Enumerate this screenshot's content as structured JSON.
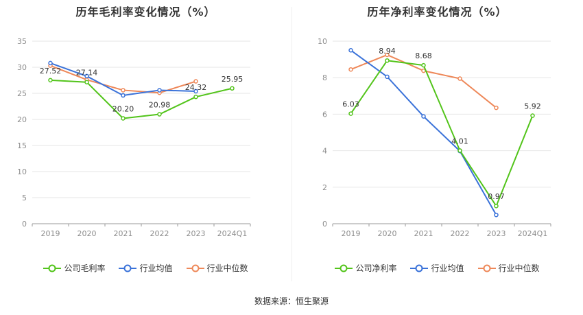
{
  "source_label": "数据来源：恒生聚源",
  "colors": {
    "company": "#52c41a",
    "industry_avg": "#3a72d9",
    "industry_median": "#ee8859"
  },
  "chart_data": [
    {
      "type": "line",
      "title": "历年毛利率变化情况（%）",
      "xlabel": "",
      "ylabel": "",
      "categories": [
        "2019",
        "2020",
        "2021",
        "2022",
        "2023",
        "2024Q1"
      ],
      "ylim": [
        0,
        35
      ],
      "yticks": [
        0,
        5,
        10,
        15,
        20,
        25,
        30,
        35
      ],
      "grid": true,
      "legend": "bottom",
      "series": [
        {
          "name": "公司毛利率",
          "values": [
            27.52,
            27.14,
            20.2,
            20.98,
            24.32,
            25.95
          ],
          "labels": [
            "27.52",
            "27.14",
            "20.20",
            "20.98",
            "24.32",
            "25.95"
          ],
          "color": "#52c41a"
        },
        {
          "name": "行业均值",
          "values": [
            30.8,
            28.3,
            24.6,
            25.6,
            25.4,
            null
          ],
          "color": "#3a72d9"
        },
        {
          "name": "行业中位数",
          "values": [
            30.3,
            27.6,
            25.6,
            25.1,
            27.3,
            null
          ],
          "color": "#ee8859"
        }
      ]
    },
    {
      "type": "line",
      "title": "历年净利率变化情况（%）",
      "xlabel": "",
      "ylabel": "",
      "categories": [
        "2019",
        "2020",
        "2021",
        "2022",
        "2023",
        "2024Q1"
      ],
      "ylim": [
        0,
        10
      ],
      "yticks": [
        0,
        2,
        4,
        6,
        8,
        10
      ],
      "grid": true,
      "legend": "bottom",
      "series": [
        {
          "name": "公司净利率",
          "values": [
            6.03,
            8.94,
            8.68,
            4.01,
            0.97,
            5.92
          ],
          "labels": [
            "6.03",
            "8.94",
            "8.68",
            "4.01",
            "0.97",
            "5.92"
          ],
          "color": "#52c41a"
        },
        {
          "name": "行业均值",
          "values": [
            9.5,
            8.05,
            5.88,
            3.98,
            0.48,
            null
          ],
          "color": "#3a72d9"
        },
        {
          "name": "行业中位数",
          "values": [
            8.45,
            9.25,
            8.38,
            7.95,
            6.35,
            null
          ],
          "color": "#ee8859"
        }
      ]
    }
  ]
}
